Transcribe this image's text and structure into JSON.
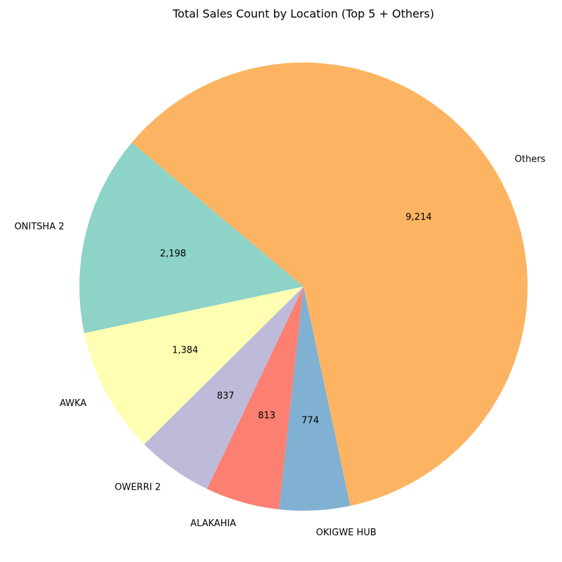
{
  "chart_data": {
    "type": "pie",
    "title": "Total Sales Count by Location (Top 5 + Others)",
    "categories": [
      "ONITSHA 2",
      "AWKA",
      "OWERRI 2",
      "ALAKAHIA",
      "OKIGWE HUB",
      "Others"
    ],
    "values": [
      2198,
      1384,
      837,
      813,
      774,
      9214
    ],
    "value_labels": [
      "2,198",
      "1,384",
      "837",
      "813",
      "774",
      "9,214"
    ],
    "colors": [
      "#8dd3c7",
      "#ffffb3",
      "#bebada",
      "#fb8072",
      "#80b1d3",
      "#fdb462"
    ],
    "start_angle_deg": 140,
    "direction": "counterclockwise"
  }
}
